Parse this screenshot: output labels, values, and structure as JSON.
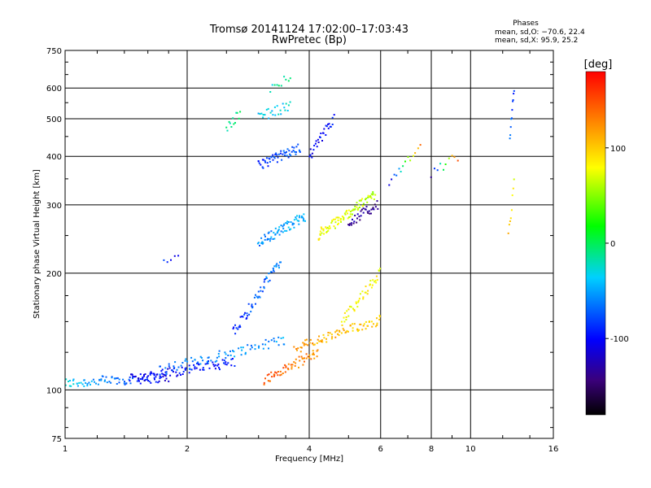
{
  "chart_data": {
    "type": "scatter",
    "title": "Tromsø 20141124 17:02:00–17:03:43",
    "subtitle": "RwPretec (Bp)",
    "xlabel": "Frequency [MHz]",
    "ylabel": "Stationary phase Virtual Height [km]",
    "x_scale": "log",
    "y_scale": "log",
    "xlim": [
      1,
      16
    ],
    "ylim": [
      75,
      750
    ],
    "x_ticks": [
      1,
      2,
      4,
      6,
      8,
      10,
      16
    ],
    "x_tick_labels": [
      "1",
      "2",
      "4",
      "6",
      "8",
      "10",
      "16"
    ],
    "y_ticks": [
      75,
      100,
      200,
      300,
      400,
      500,
      600,
      750
    ],
    "y_tick_labels": [
      "75",
      "100",
      "200",
      "300",
      "400",
      "500",
      "600",
      "750"
    ],
    "grid": true,
    "colorbar": {
      "label": "[deg]",
      "range": [
        -180,
        180
      ],
      "ticks": [
        100,
        0,
        -100
      ],
      "tick_labels": [
        "100",
        "0",
        "-100"
      ]
    },
    "annotation": {
      "heading": "Phases",
      "line1": "mean, sd,O: −70.6, 22.4",
      "line2": "mean, sd,X:  95.9, 25.2"
    },
    "traces": [
      {
        "f0": 1.0,
        "f1": 1.8,
        "h0": 104,
        "h1": 108,
        "ph0": -30,
        "ph1": -110,
        "n": 90
      },
      {
        "f0": 1.45,
        "f1": 2.6,
        "h0": 107,
        "h1": 118,
        "ph0": -110,
        "ph1": -90,
        "n": 90
      },
      {
        "f0": 1.7,
        "f1": 3.5,
        "h0": 112,
        "h1": 135,
        "ph0": -70,
        "ph1": -50,
        "n": 80
      },
      {
        "f0": 3.1,
        "f1": 4.2,
        "h0": 106,
        "h1": 125,
        "ph0": 150,
        "ph1": 120,
        "n": 60
      },
      {
        "f0": 3.7,
        "f1": 6.0,
        "h0": 128,
        "h1": 152,
        "ph0": 120,
        "ph1": 95,
        "n": 85
      },
      {
        "f0": 4.8,
        "f1": 6.0,
        "h0": 150,
        "h1": 200,
        "ph0": 85,
        "ph1": 80,
        "n": 45
      },
      {
        "f0": 3.0,
        "f1": 3.8,
        "h0": 380,
        "h1": 420,
        "ph0": -90,
        "ph1": -70,
        "n": 55
      },
      {
        "f0": 3.0,
        "f1": 3.9,
        "h0": 240,
        "h1": 280,
        "ph0": -60,
        "ph1": -40,
        "n": 70
      },
      {
        "f0": 4.2,
        "f1": 5.8,
        "h0": 250,
        "h1": 320,
        "ph0": 80,
        "ph1": 60,
        "n": 90
      },
      {
        "f0": 5.0,
        "f1": 5.9,
        "h0": 270,
        "h1": 300,
        "ph0": -130,
        "ph1": -140,
        "n": 35
      },
      {
        "f0": 3.0,
        "f1": 3.6,
        "h0": 505,
        "h1": 540,
        "ph0": -40,
        "ph1": -30,
        "n": 25
      },
      {
        "f0": 2.5,
        "f1": 2.7,
        "h0": 470,
        "h1": 520,
        "ph0": -20,
        "ph1": -10,
        "n": 12
      },
      {
        "f0": 2.6,
        "f1": 3.4,
        "h0": 140,
        "h1": 215,
        "ph0": -90,
        "ph1": -60,
        "n": 60
      },
      {
        "f0": 3.2,
        "f1": 3.6,
        "h0": 600,
        "h1": 640,
        "ph0": -20,
        "ph1": -10,
        "n": 10
      },
      {
        "f0": 4.0,
        "f1": 4.6,
        "h0": 400,
        "h1": 500,
        "ph0": -110,
        "ph1": -90,
        "n": 30
      },
      {
        "f0": 1.75,
        "f1": 1.9,
        "h0": 212,
        "h1": 222,
        "ph0": -90,
        "ph1": -100,
        "n": 5
      },
      {
        "f0": 6.3,
        "f1": 7.5,
        "h0": 340,
        "h1": 420,
        "ph0": -120,
        "ph1": 140,
        "n": 14
      },
      {
        "f0": 8.0,
        "f1": 9.3,
        "h0": 360,
        "h1": 400,
        "ph0": -130,
        "ph1": 160,
        "n": 10
      },
      {
        "f0": 12.5,
        "f1": 12.8,
        "h0": 440,
        "h1": 600,
        "ph0": -60,
        "ph1": -90,
        "n": 10
      },
      {
        "f0": 12.4,
        "f1": 12.8,
        "h0": 250,
        "h1": 340,
        "ph0": 100,
        "ph1": 80,
        "n": 8
      }
    ]
  }
}
